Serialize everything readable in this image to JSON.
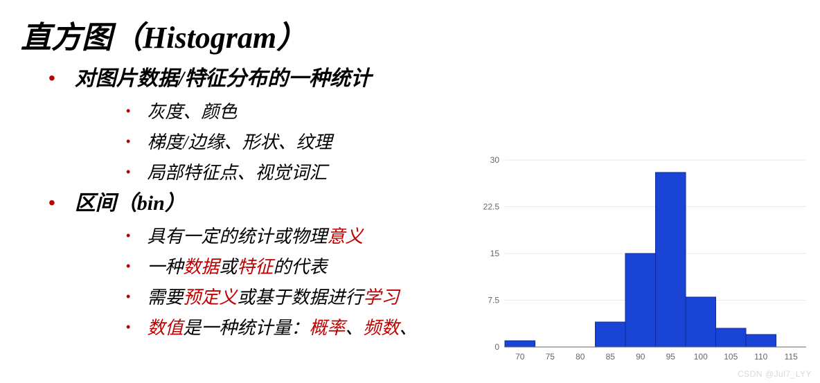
{
  "title": "直方图（Histogram）",
  "sections": [
    {
      "heading": "对图片数据/特征分布的一种统计",
      "items": [
        {
          "segments": [
            {
              "t": "灰度、颜色",
              "hl": false
            }
          ]
        },
        {
          "segments": [
            {
              "t": "梯度/边缘、形状、纹理",
              "hl": false
            }
          ]
        },
        {
          "segments": [
            {
              "t": "局部特征点、视觉词汇",
              "hl": false
            }
          ]
        }
      ]
    },
    {
      "heading": "区间（bin）",
      "items": [
        {
          "segments": [
            {
              "t": "具有一定的统计或物理",
              "hl": false
            },
            {
              "t": "意义",
              "hl": true
            }
          ]
        },
        {
          "segments": [
            {
              "t": "一种",
              "hl": false
            },
            {
              "t": "数据",
              "hl": true
            },
            {
              "t": "或",
              "hl": false
            },
            {
              "t": "特征",
              "hl": true
            },
            {
              "t": "的代表",
              "hl": false
            }
          ]
        },
        {
          "segments": [
            {
              "t": "需要",
              "hl": false
            },
            {
              "t": "预定义",
              "hl": true
            },
            {
              "t": "或基于数据进行",
              "hl": false
            },
            {
              "t": "学习",
              "hl": true
            }
          ]
        },
        {
          "segments": [
            {
              "t": "数值",
              "hl": true
            },
            {
              "t": "是一种统计量：",
              "hl": false
            },
            {
              "t": "概率",
              "hl": true
            },
            {
              "t": "、",
              "hl": false
            },
            {
              "t": "频数",
              "hl": true
            },
            {
              "t": "、",
              "hl": false
            }
          ]
        }
      ]
    }
  ],
  "chart": {
    "type": "histogram",
    "bar_color": "#1a44d6",
    "bar_border": "#0d2a9e",
    "background_color": "#ffffff",
    "axis_color": "#666666",
    "grid_color": "#e8e8e8",
    "tick_label_color": "#666666",
    "tick_fontsize": 12,
    "x_ticks": [
      70,
      75,
      80,
      85,
      90,
      95,
      100,
      105,
      110,
      115
    ],
    "y_ticks": [
      0,
      7.5,
      15,
      22.5,
      30
    ],
    "ylim": [
      0,
      30
    ],
    "xlim": [
      67.5,
      117.5
    ],
    "bin_width": 5,
    "bins": [
      {
        "x": 70,
        "count": 1
      },
      {
        "x": 75,
        "count": 0
      },
      {
        "x": 80,
        "count": 0
      },
      {
        "x": 85,
        "count": 4
      },
      {
        "x": 90,
        "count": 15
      },
      {
        "x": 95,
        "count": 28
      },
      {
        "x": 100,
        "count": 8
      },
      {
        "x": 105,
        "count": 3
      },
      {
        "x": 110,
        "count": 2
      }
    ]
  },
  "watermark": "CSDN @Jul7_LYY"
}
